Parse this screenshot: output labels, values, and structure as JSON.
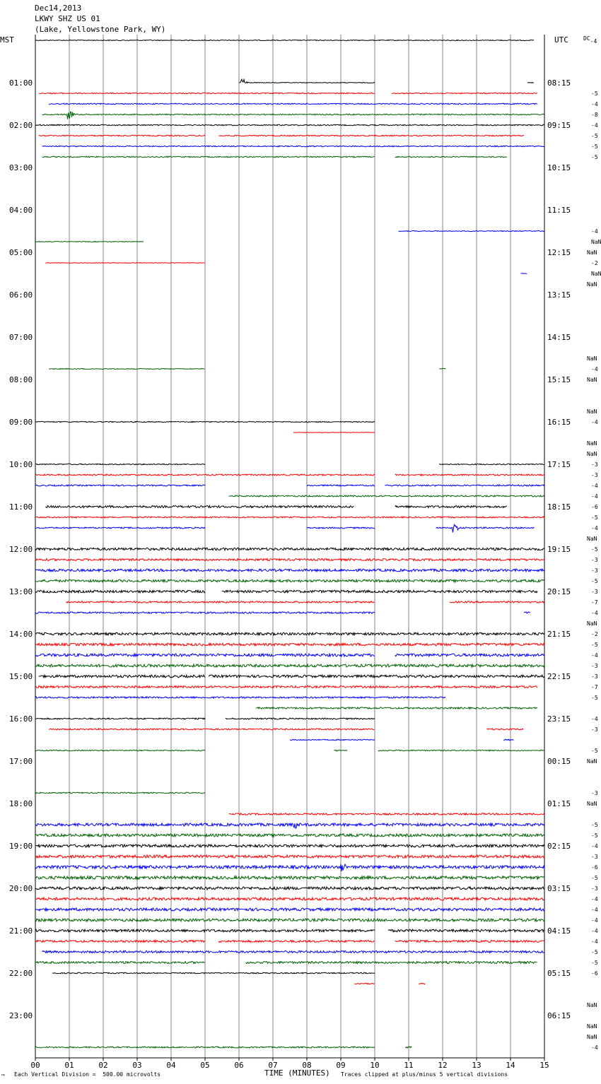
{
  "header": {
    "date": "Dec14,2013",
    "station": "LKWY SHZ US 01",
    "location": "(Lake, Yellowstone Park, WY)"
  },
  "left_tz": "MST",
  "right_tz": "UTC",
  "dc_label": "DC",
  "dc_first": "-4",
  "footer": {
    "vertical_division": "Each Vertical Division =  500.00 microvolts",
    "clipped": "Traces clipped at plus/minus 5 vertical divisions",
    "corner_mark": "™"
  },
  "colors": {
    "black": "#000000",
    "red": "#ff0000",
    "blue": "#0000ff",
    "green": "#006400",
    "grid": "#808080"
  },
  "chart_data": {
    "type": "line",
    "title": "LKWY SHZ US 01 (Lake, Yellowstone Park, WY) Dec14,2013",
    "xlabel": "TIME (MINUTES)",
    "ylabel": "",
    "xlim": [
      0,
      15
    ],
    "x_ticks": [
      "00",
      "01",
      "02",
      "03",
      "04",
      "05",
      "06",
      "07",
      "08",
      "09",
      "10",
      "11",
      "12",
      "13",
      "14",
      "15"
    ],
    "hour_labels_left": [
      "",
      "01:00",
      "02:00",
      "03:00",
      "04:00",
      "05:00",
      "06:00",
      "07:00",
      "08:00",
      "09:00",
      "10:00",
      "11:00",
      "12:00",
      "13:00",
      "14:00",
      "15:00",
      "16:00",
      "17:00",
      "18:00",
      "19:00",
      "20:00",
      "21:00",
      "22:00",
      "23:00"
    ],
    "hour_labels_right": [
      "",
      "08:15",
      "09:15",
      "10:15",
      "11:15",
      "12:15",
      "13:15",
      "14:15",
      "15:15",
      "16:15",
      "17:15",
      "18:15",
      "19:15",
      "20:15",
      "21:15",
      "22:15",
      "23:15",
      "00:15",
      "01:15",
      "02:15",
      "03:15",
      "04:15",
      "05:15",
      "06:15"
    ],
    "series_colors_cycle": [
      "black",
      "red",
      "blue",
      "green"
    ],
    "traces": [
      {
        "row": 0,
        "segments": [
          [
            0,
            14.7
          ]
        ],
        "dc": "",
        "amp": 0.6
      },
      {
        "row": 4,
        "segments": [
          [
            6.0,
            10
          ],
          [
            14.5,
            14.7
          ]
        ],
        "dc": "",
        "amp": 0.5,
        "events": [
          6.05
        ]
      },
      {
        "row": 5,
        "segments": [
          [
            0.1,
            10
          ],
          [
            10.5,
            14.8
          ]
        ],
        "dc": "-5",
        "amp": 0.8
      },
      {
        "row": 6,
        "segments": [
          [
            0.4,
            14.8
          ]
        ],
        "dc": "-4",
        "amp": 0.8
      },
      {
        "row": 7,
        "segments": [
          [
            0.2,
            15
          ]
        ],
        "dc": "-8",
        "amp": 0.8,
        "events": [
          0.95
        ]
      },
      {
        "row": 8,
        "segments": [
          [
            0,
            15
          ]
        ],
        "dc": "-4",
        "amp": 0.8
      },
      {
        "row": 9,
        "segments": [
          [
            0.1,
            5
          ],
          [
            5.4,
            14.4
          ]
        ],
        "dc": "-5",
        "amp": 0.8
      },
      {
        "row": 10,
        "segments": [
          [
            0.2,
            15
          ]
        ],
        "dc": "-5",
        "amp": 0.8
      },
      {
        "row": 11,
        "segments": [
          [
            0.2,
            10
          ],
          [
            10.6,
            13.9
          ]
        ],
        "dc": "-5",
        "amp": 0.8
      },
      {
        "row": 18,
        "segments": [
          [
            10.7,
            15
          ]
        ],
        "dc": "-4",
        "amp": 0.6
      },
      {
        "row": 19,
        "segments": [
          [
            0,
            3.2
          ]
        ],
        "dc": "NaN",
        "amp": 0.5
      },
      {
        "row": 21,
        "segments": [
          [
            0.3,
            5
          ]
        ],
        "dc": "-2",
        "amp": 0.4
      },
      {
        "row": 22,
        "segments": [
          [
            14.3,
            14.5
          ]
        ],
        "dc": "NaN",
        "amp": 0.4
      },
      {
        "row": 31,
        "segments": [
          [
            0.4,
            5
          ],
          [
            11.9,
            12.1
          ]
        ],
        "dc": "-4",
        "amp": 0.6
      },
      {
        "row": 36,
        "segments": [
          [
            0,
            10
          ]
        ],
        "dc": "-4",
        "amp": 0.7
      },
      {
        "row": 37,
        "segments": [
          [
            7.6,
            10
          ]
        ],
        "dc": "",
        "amp": 0.3
      },
      {
        "row": 40,
        "segments": [
          [
            0,
            5
          ],
          [
            11.9,
            15
          ]
        ],
        "dc": "-3",
        "amp": 0.8
      },
      {
        "row": 41,
        "segments": [
          [
            0,
            10
          ],
          [
            10.6,
            15
          ]
        ],
        "dc": "-3",
        "amp": 1.0
      },
      {
        "row": 42,
        "segments": [
          [
            0,
            5
          ],
          [
            8,
            10
          ],
          [
            10.3,
            15
          ]
        ],
        "dc": "-4",
        "amp": 1.0
      },
      {
        "row": 43,
        "segments": [
          [
            5.7,
            15
          ]
        ],
        "dc": "-4",
        "amp": 1.0
      },
      {
        "row": 44,
        "segments": [
          [
            0.3,
            9.4
          ],
          [
            10.6,
            13.9
          ]
        ],
        "dc": "-6",
        "amp": 1.5
      },
      {
        "row": 45,
        "segments": [
          [
            0,
            15
          ]
        ],
        "dc": "-5",
        "amp": 1.0
      },
      {
        "row": 46,
        "segments": [
          [
            0,
            5
          ],
          [
            8,
            10
          ],
          [
            11.8,
            14.7
          ]
        ],
        "dc": "-4",
        "amp": 1.0,
        "events": [
          12.3
        ]
      },
      {
        "row": 48,
        "segments": [
          [
            0,
            15
          ]
        ],
        "dc": "-5",
        "amp": 1.8
      },
      {
        "row": 49,
        "segments": [
          [
            0,
            15
          ]
        ],
        "dc": "-3",
        "amp": 1.5
      },
      {
        "row": 50,
        "segments": [
          [
            0,
            15
          ]
        ],
        "dc": "-3",
        "amp": 1.8
      },
      {
        "row": 51,
        "segments": [
          [
            0,
            15
          ]
        ],
        "dc": "-5",
        "amp": 1.8
      },
      {
        "row": 52,
        "segments": [
          [
            0,
            5
          ],
          [
            5.5,
            14.8
          ]
        ],
        "dc": "-3",
        "amp": 1.8
      },
      {
        "row": 53,
        "segments": [
          [
            0.9,
            10
          ],
          [
            12.2,
            15
          ]
        ],
        "dc": "-7",
        "amp": 1.2
      },
      {
        "row": 54,
        "segments": [
          [
            0,
            10
          ],
          [
            14.4,
            14.6
          ]
        ],
        "dc": "-4",
        "amp": 1.2
      },
      {
        "row": 56,
        "segments": [
          [
            0,
            15
          ]
        ],
        "dc": "-2",
        "amp": 1.8
      },
      {
        "row": 57,
        "segments": [
          [
            0,
            15
          ]
        ],
        "dc": "-5",
        "amp": 1.8
      },
      {
        "row": 58,
        "segments": [
          [
            0,
            10
          ],
          [
            10.6,
            15
          ]
        ],
        "dc": "-4",
        "amp": 2.0
      },
      {
        "row": 59,
        "segments": [
          [
            0,
            15
          ]
        ],
        "dc": "-3",
        "amp": 2.0
      },
      {
        "row": 60,
        "segments": [
          [
            0.1,
            5
          ],
          [
            5.1,
            15
          ]
        ],
        "dc": "-3",
        "amp": 1.8
      },
      {
        "row": 61,
        "segments": [
          [
            0,
            14.8
          ]
        ],
        "dc": "-7",
        "amp": 1.5
      },
      {
        "row": 62,
        "segments": [
          [
            0,
            12.1
          ]
        ],
        "dc": "-5",
        "amp": 1.2
      },
      {
        "row": 63,
        "segments": [
          [
            6.5,
            14.8
          ]
        ],
        "dc": "",
        "amp": 1.2
      },
      {
        "row": 64,
        "segments": [
          [
            0,
            5
          ],
          [
            5.6,
            10
          ]
        ],
        "dc": "-4",
        "amp": 1.0
      },
      {
        "row": 65,
        "segments": [
          [
            0.4,
            10
          ],
          [
            13.3,
            14.4
          ]
        ],
        "dc": "-3",
        "amp": 1.0
      },
      {
        "row": 66,
        "segments": [
          [
            7.5,
            10
          ],
          [
            13.8,
            14.1
          ]
        ],
        "dc": "",
        "amp": 0.8
      },
      {
        "row": 67,
        "segments": [
          [
            0,
            5
          ],
          [
            8.8,
            9.2
          ],
          [
            10.1,
            15
          ]
        ],
        "dc": "-5",
        "amp": 0.8
      },
      {
        "row": 71,
        "segments": [
          [
            0,
            5
          ]
        ],
        "dc": "-3",
        "amp": 0.8
      },
      {
        "row": 73,
        "segments": [
          [
            5.7,
            15
          ]
        ],
        "dc": "",
        "amp": 1.2
      },
      {
        "row": 74,
        "segments": [
          [
            0,
            15
          ]
        ],
        "dc": "-5",
        "amp": 2.0,
        "events": [
          7.6
        ]
      },
      {
        "row": 75,
        "segments": [
          [
            0,
            15
          ]
        ],
        "dc": "-5",
        "amp": 2.0
      },
      {
        "row": 76,
        "segments": [
          [
            0,
            15
          ]
        ],
        "dc": "-4",
        "amp": 2.0
      },
      {
        "row": 77,
        "segments": [
          [
            0,
            15
          ]
        ],
        "dc": "-3",
        "amp": 2.0
      },
      {
        "row": 78,
        "segments": [
          [
            0,
            15
          ]
        ],
        "dc": "-6",
        "amp": 2.2,
        "events": [
          9.0
        ]
      },
      {
        "row": 79,
        "segments": [
          [
            0,
            15
          ]
        ],
        "dc": "-5",
        "amp": 2.2
      },
      {
        "row": 80,
        "segments": [
          [
            0,
            15
          ]
        ],
        "dc": "-3",
        "amp": 2.0
      },
      {
        "row": 81,
        "segments": [
          [
            0,
            15
          ]
        ],
        "dc": "-4",
        "amp": 2.0
      },
      {
        "row": 82,
        "segments": [
          [
            0,
            15
          ]
        ],
        "dc": "-4",
        "amp": 2.0
      },
      {
        "row": 83,
        "segments": [
          [
            0,
            15
          ]
        ],
        "dc": "-4",
        "amp": 2.0
      },
      {
        "row": 84,
        "segments": [
          [
            0,
            10
          ],
          [
            10.4,
            15
          ]
        ],
        "dc": "-4",
        "amp": 1.8
      },
      {
        "row": 85,
        "segments": [
          [
            0,
            5
          ],
          [
            5.4,
            10
          ],
          [
            10.6,
            15
          ]
        ],
        "dc": "-4",
        "amp": 1.5
      },
      {
        "row": 86,
        "segments": [
          [
            0.2,
            15
          ]
        ],
        "dc": "-5",
        "amp": 1.5
      },
      {
        "row": 87,
        "segments": [
          [
            0,
            5
          ],
          [
            6.2,
            14.8
          ]
        ],
        "dc": "-5",
        "amp": 1.5
      },
      {
        "row": 88,
        "segments": [
          [
            0.5,
            10
          ]
        ],
        "dc": "-6",
        "amp": 0.8
      },
      {
        "row": 89,
        "segments": [
          [
            9.4,
            10
          ],
          [
            11.3,
            11.5
          ]
        ],
        "dc": "",
        "amp": 0.8
      },
      {
        "row": 95,
        "segments": [
          [
            0,
            10
          ],
          [
            10.9,
            11.1
          ]
        ],
        "dc": "-4",
        "amp": 1.0
      }
    ],
    "nan_rows": [
      20,
      23,
      30,
      32,
      35,
      38,
      39,
      47,
      55,
      68,
      72,
      91,
      93,
      94
    ]
  }
}
